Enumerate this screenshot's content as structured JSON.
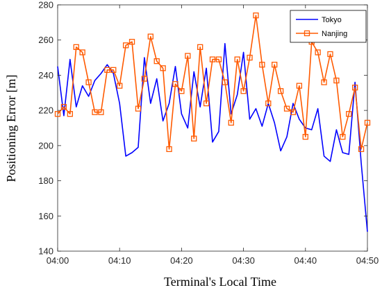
{
  "chart_data": {
    "type": "line",
    "xlabel": "Terminal's Local Time",
    "ylabel": "Positioning Error [m]",
    "x_range_minutes": [
      0,
      50
    ],
    "ylim": [
      140,
      280
    ],
    "x_ticks": [
      {
        "minute": 0,
        "label": "04:00"
      },
      {
        "minute": 10,
        "label": "04:10"
      },
      {
        "minute": 20,
        "label": "04:20"
      },
      {
        "minute": 30,
        "label": "04:30"
      },
      {
        "minute": 40,
        "label": "04:40"
      },
      {
        "minute": 50,
        "label": "04:50"
      }
    ],
    "y_ticks": [
      140,
      160,
      180,
      200,
      220,
      240,
      260,
      280
    ],
    "grid": false,
    "legend_position": "top-right",
    "series": [
      {
        "name": "Tokyo",
        "color": "#0000ff",
        "marker": "none",
        "x": [
          0,
          1,
          2,
          3,
          4,
          5,
          6,
          7,
          8,
          9,
          10,
          11,
          12,
          13,
          14,
          15,
          16,
          17,
          18,
          19,
          20,
          21,
          22,
          23,
          24,
          25,
          26,
          27,
          28,
          29,
          30,
          31,
          32,
          33,
          34,
          35,
          36,
          37,
          38,
          39,
          40,
          41,
          42,
          43,
          44,
          45,
          46,
          47,
          48,
          49,
          50
        ],
        "y": [
          245,
          217,
          249,
          222,
          234,
          228,
          237,
          241,
          246,
          241,
          224,
          194,
          196,
          199,
          250,
          224,
          238,
          214,
          224,
          245,
          218,
          210,
          242,
          222,
          244,
          202,
          208,
          258,
          218,
          229,
          253,
          215,
          221,
          211,
          224,
          213,
          197,
          205,
          224,
          215,
          210,
          209,
          221,
          194,
          191,
          209,
          196,
          195,
          236,
          190,
          151
        ]
      },
      {
        "name": "Nanjing",
        "color": "#ff5a00",
        "marker": "square",
        "x": [
          0,
          1,
          2,
          3,
          4,
          5,
          6,
          7,
          8,
          9,
          10,
          11,
          12,
          13,
          14,
          15,
          16,
          17,
          18,
          19,
          20,
          21,
          22,
          23,
          24,
          25,
          26,
          27,
          28,
          29,
          30,
          31,
          32,
          33,
          34,
          35,
          36,
          37,
          38,
          39,
          40,
          41,
          42,
          43,
          44,
          45,
          46,
          47,
          48,
          49,
          50
        ],
        "y": [
          218,
          222,
          218,
          256,
          253,
          236,
          219,
          219,
          243,
          243,
          234,
          257,
          259,
          221,
          238,
          262,
          248,
          244,
          198,
          235,
          231,
          251,
          204,
          256,
          224,
          249,
          249,
          236,
          213,
          249,
          231,
          250,
          274,
          246,
          224,
          246,
          231,
          221,
          219,
          234,
          205,
          259,
          253,
          236,
          252,
          237,
          205,
          218,
          233,
          198,
          213
        ]
      }
    ]
  }
}
